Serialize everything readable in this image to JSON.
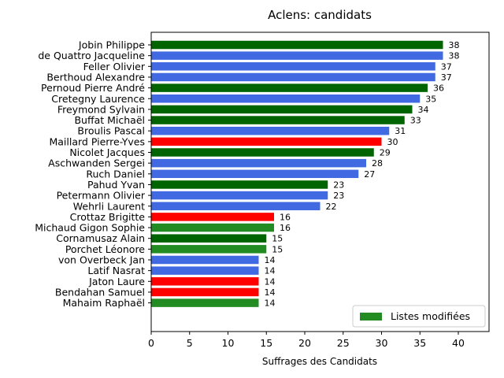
{
  "chart_data": {
    "type": "bar",
    "orientation": "horizontal",
    "title": "Aclens: candidats",
    "xlabel": "Suffrages des Candidats",
    "ylabel": "",
    "xlim": [
      0,
      44
    ],
    "xticks": [
      0,
      5,
      10,
      15,
      20,
      25,
      30,
      35,
      40
    ],
    "grid": false,
    "legend_position": "lower-right",
    "legend": [
      {
        "label": "Listes modifiées",
        "color": "#228b22"
      }
    ],
    "categories": [
      "Jobin Philippe",
      "de Quattro Jacqueline",
      "Feller Olivier",
      "Berthoud Alexandre",
      "Pernoud Pierre André",
      "Cretegny Laurence",
      "Freymond Sylvain",
      "Buffat Michaël",
      "Broulis Pascal",
      "Maillard Pierre-Yves",
      "Nicolet Jacques",
      "Aschwanden Sergei",
      "Ruch Daniel",
      "Pahud Yvan",
      "Petermann Olivier",
      "Wehrli Laurent",
      "Crottaz Brigitte",
      "Michaud Gigon Sophie",
      "Cornamusaz Alain",
      "Porchet Léonore",
      "von Overbeck Jan",
      "Latif Nasrat",
      "Jaton Laure",
      "Bendahan Samuel",
      "Mahaim Raphaël"
    ],
    "values": [
      38,
      38,
      37,
      37,
      36,
      35,
      34,
      33,
      31,
      30,
      29,
      28,
      27,
      23,
      23,
      22,
      16,
      16,
      15,
      15,
      14,
      14,
      14,
      14,
      14
    ],
    "data_labels": [
      "38",
      "38",
      "37",
      "37",
      "36",
      "35",
      "34",
      "33",
      "31",
      "30",
      "29",
      "28",
      "27",
      "23",
      "23",
      "22",
      "16",
      "16",
      "15",
      "15",
      "14",
      "14",
      "14",
      "14",
      "14"
    ],
    "colors": [
      "#006400",
      "#4169e1",
      "#4169e1",
      "#4169e1",
      "#006400",
      "#4169e1",
      "#006400",
      "#006400",
      "#4169e1",
      "#ff0000",
      "#006400",
      "#4169e1",
      "#4169e1",
      "#006400",
      "#4169e1",
      "#4169e1",
      "#ff0000",
      "#228b22",
      "#006400",
      "#228b22",
      "#4169e1",
      "#4169e1",
      "#ff0000",
      "#ff0000",
      "#228b22"
    ]
  }
}
